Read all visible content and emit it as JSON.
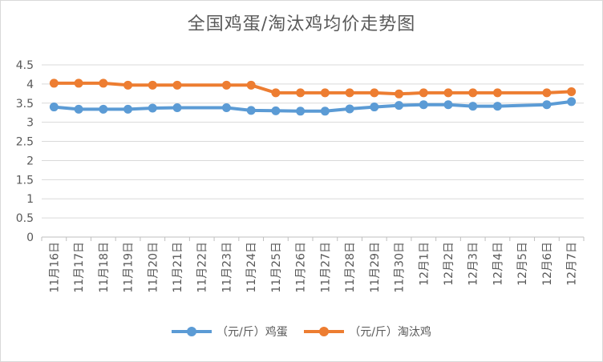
{
  "chart_data": {
    "type": "line",
    "title": "全国鸡蛋/淘汰鸡均价走势图",
    "categories": [
      "11月16日",
      "11月17日",
      "11月18日",
      "11月19日",
      "11月20日",
      "11月21日",
      "11月22日",
      "11月23日",
      "11月24日",
      "11月25日",
      "11月26日",
      "11月27日",
      "11月28日",
      "11月29日",
      "11月30日",
      "12月1日",
      "12月2日",
      "12月3日",
      "12月4日",
      "12月5日",
      "12月6日",
      "12月7日"
    ],
    "ylim": [
      0,
      4.5
    ],
    "yticks": [
      "0",
      "0.5",
      "1",
      "1.5",
      "2",
      "2.5",
      "3",
      "3.5",
      "4",
      "4.5"
    ],
    "grid": true,
    "legend_position": "bottom",
    "series": [
      {
        "name": "（元/斤）鸡蛋",
        "color": "#5b9bd5",
        "values": [
          3.4,
          3.34,
          3.34,
          3.34,
          3.37,
          3.38,
          null,
          3.38,
          3.31,
          3.3,
          3.29,
          3.29,
          3.35,
          3.4,
          3.44,
          3.46,
          3.46,
          3.42,
          3.42,
          null,
          3.46,
          3.54
        ]
      },
      {
        "name": "（元/斤）淘汰鸡",
        "color": "#ed7d31",
        "values": [
          4.02,
          4.02,
          4.02,
          3.97,
          3.97,
          3.97,
          null,
          3.97,
          3.97,
          3.77,
          3.77,
          3.77,
          3.77,
          3.77,
          3.74,
          3.77,
          3.77,
          3.77,
          3.77,
          null,
          3.77,
          3.8
        ]
      }
    ]
  }
}
